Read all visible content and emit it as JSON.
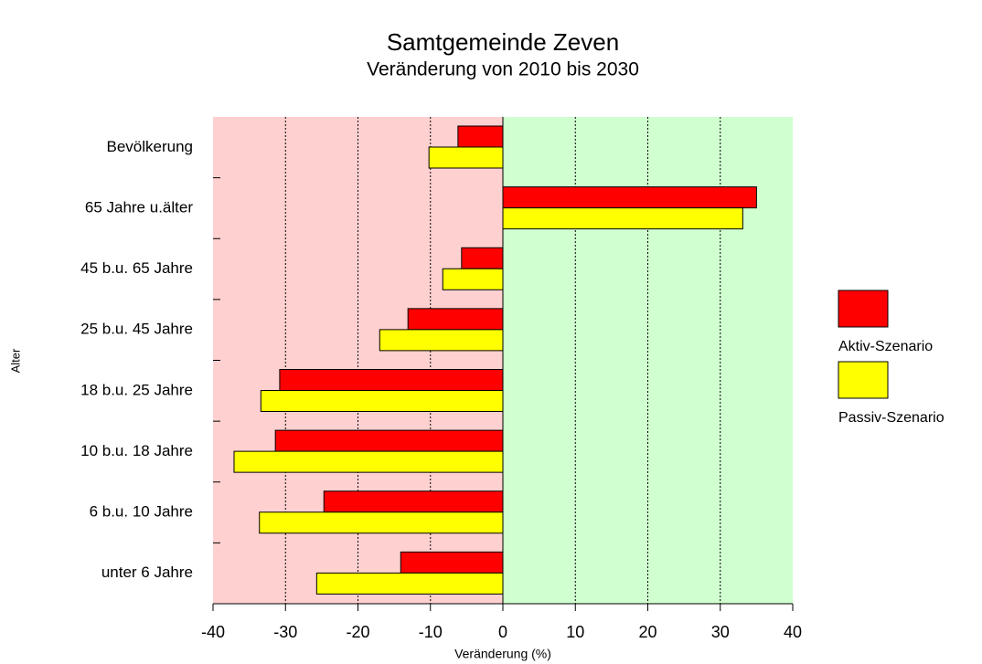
{
  "chart_data": {
    "type": "bar",
    "orientation": "horizontal",
    "title": "Samtgemeinde Zeven",
    "subtitle": "Veränderung von 2010 bis 2030",
    "x_label": "Veränderung (%)",
    "y_label": "Alter",
    "categories": [
      "Bevölkerung",
      "65 Jahre u.älter",
      "45 b.u. 65 Jahre",
      "25 b.u. 45 Jahre",
      "18 b.u. 25 Jahre",
      "10 b.u. 18 Jahre",
      "6 b.u. 10 Jahre",
      "unter 6 Jahre"
    ],
    "series": [
      {
        "name": "Aktiv-Szenario",
        "color": "#ff0000",
        "values": [
          -6.2,
          35.0,
          -5.7,
          -13.1,
          -30.8,
          -31.4,
          -24.7,
          -14.1
        ]
      },
      {
        "name": "Passiv-Szenario",
        "color": "#ffff00",
        "values": [
          -10.2,
          33.1,
          -8.3,
          -17.0,
          -33.4,
          -37.1,
          -33.6,
          -25.7
        ]
      }
    ],
    "xlim": [
      -40,
      40
    ],
    "xticks": [
      -40,
      -30,
      -20,
      -10,
      0,
      10,
      20,
      30,
      40
    ],
    "grid": true,
    "legend": "right"
  }
}
